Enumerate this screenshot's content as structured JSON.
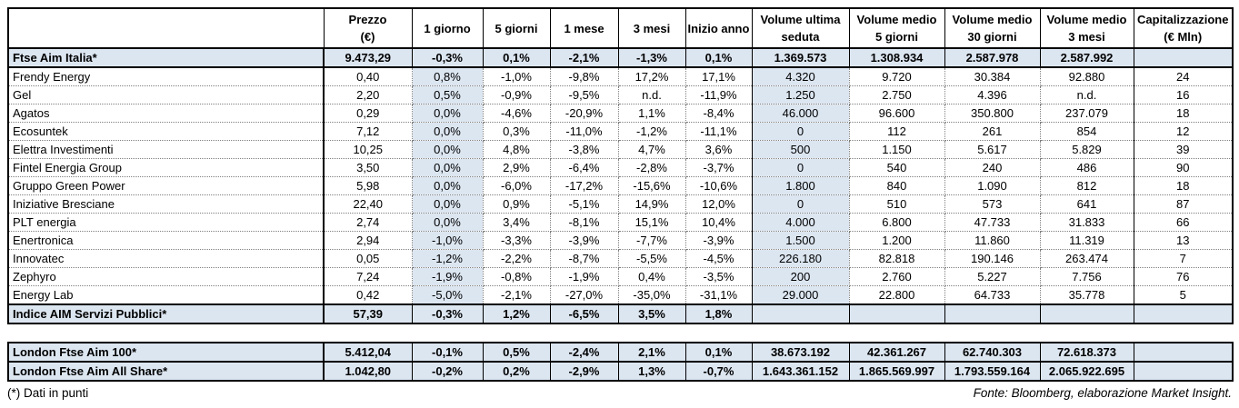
{
  "page": {
    "note": "(*) Dati in punti",
    "source": "Fonte: Bloomberg, elaborazione Market Insight."
  },
  "colors": {
    "highlight_blue": "#dce6f1",
    "border": "#000000",
    "text": "#000000",
    "background": "#ffffff"
  },
  "main_table": {
    "headers": [
      {
        "l1": "Prezzo",
        "l2": "(€)"
      },
      {
        "l1": "1 giorno",
        "l2": ""
      },
      {
        "l1": "5 giorni",
        "l2": ""
      },
      {
        "l1": "1 mese",
        "l2": ""
      },
      {
        "l1": "3 mesi",
        "l2": ""
      },
      {
        "l1": "Inizio anno",
        "l2": ""
      },
      {
        "l1": "Volume ultima",
        "l2": "seduta"
      },
      {
        "l1": "Volume medio",
        "l2": "5 giorni"
      },
      {
        "l1": "Volume medio",
        "l2": "30 giorni"
      },
      {
        "l1": "Volume medio",
        "l2": "3 mesi"
      },
      {
        "l1": "Capitalizzazione",
        "l2": "(€ Mln)"
      }
    ],
    "rows": [
      {
        "name": "Ftse Aim Italia*",
        "kind": "index",
        "cells": [
          "9.473,29",
          "-0,3%",
          "0,1%",
          "-2,1%",
          "-1,3%",
          "0,1%",
          "1.369.573",
          "1.308.934",
          "2.587.978",
          "2.587.992",
          ""
        ]
      },
      {
        "name": "Frendy Energy",
        "kind": "stock",
        "cells": [
          "0,40",
          "0,8%",
          "-1,0%",
          "-9,8%",
          "17,2%",
          "17,1%",
          "4.320",
          "9.720",
          "30.384",
          "92.880",
          "24"
        ]
      },
      {
        "name": "Gel",
        "kind": "stock",
        "cells": [
          "2,20",
          "0,5%",
          "-0,9%",
          "-9,5%",
          "n.d.",
          "-11,9%",
          "1.250",
          "2.750",
          "4.396",
          "n.d.",
          "16"
        ]
      },
      {
        "name": "Agatos",
        "kind": "stock",
        "cells": [
          "0,29",
          "0,0%",
          "-4,6%",
          "-20,9%",
          "1,1%",
          "-8,4%",
          "46.000",
          "96.600",
          "350.800",
          "237.079",
          "18"
        ]
      },
      {
        "name": "Ecosuntek",
        "kind": "stock",
        "cells": [
          "7,12",
          "0,0%",
          "0,3%",
          "-11,0%",
          "-1,2%",
          "-11,1%",
          "0",
          "112",
          "261",
          "854",
          "12"
        ]
      },
      {
        "name": "Elettra Investimenti",
        "kind": "stock",
        "cells": [
          "10,25",
          "0,0%",
          "4,8%",
          "-3,8%",
          "4,7%",
          "3,6%",
          "500",
          "1.150",
          "5.617",
          "5.829",
          "39"
        ]
      },
      {
        "name": "Fintel Energia Group",
        "kind": "stock",
        "cells": [
          "3,50",
          "0,0%",
          "2,9%",
          "-6,4%",
          "-2,8%",
          "-3,7%",
          "0",
          "540",
          "240",
          "486",
          "90"
        ]
      },
      {
        "name": "Gruppo Green Power",
        "kind": "stock",
        "cells": [
          "5,98",
          "0,0%",
          "-6,0%",
          "-17,2%",
          "-15,6%",
          "-10,6%",
          "1.800",
          "840",
          "1.090",
          "812",
          "18"
        ]
      },
      {
        "name": "Iniziative Bresciane",
        "kind": "stock",
        "cells": [
          "22,40",
          "0,0%",
          "0,9%",
          "-5,1%",
          "14,9%",
          "12,0%",
          "0",
          "510",
          "573",
          "641",
          "87"
        ]
      },
      {
        "name": "PLT energia",
        "kind": "stock",
        "cells": [
          "2,74",
          "0,0%",
          "3,4%",
          "-8,1%",
          "15,1%",
          "10,4%",
          "4.000",
          "6.800",
          "47.733",
          "31.833",
          "66"
        ]
      },
      {
        "name": "Enertronica",
        "kind": "stock",
        "cells": [
          "2,94",
          "-1,0%",
          "-3,3%",
          "-3,9%",
          "-7,7%",
          "-3,9%",
          "1.500",
          "1.200",
          "11.860",
          "11.319",
          "13"
        ]
      },
      {
        "name": "Innovatec",
        "kind": "stock",
        "cells": [
          "0,05",
          "-1,2%",
          "-2,2%",
          "-8,7%",
          "-5,5%",
          "-4,5%",
          "226.180",
          "82.818",
          "190.146",
          "263.474",
          "7"
        ]
      },
      {
        "name": "Zephyro",
        "kind": "stock",
        "cells": [
          "7,24",
          "-1,9%",
          "-0,8%",
          "-1,9%",
          "0,4%",
          "-3,5%",
          "200",
          "2.760",
          "5.227",
          "7.756",
          "76"
        ]
      },
      {
        "name": "Energy Lab",
        "kind": "stock",
        "cells": [
          "0,42",
          "-5,0%",
          "-2,1%",
          "-27,0%",
          "-35,0%",
          "-31,1%",
          "29.000",
          "22.800",
          "64.733",
          "35.778",
          "5"
        ]
      },
      {
        "name": "Indice AIM Servizi Pubblici*",
        "kind": "index",
        "cells": [
          "57,39",
          "-0,3%",
          "1,2%",
          "-6,5%",
          "3,5%",
          "1,8%",
          "",
          "",
          "",
          "",
          ""
        ]
      }
    ]
  },
  "london_table": {
    "rows": [
      {
        "name": "London Ftse Aim 100*",
        "kind": "index",
        "cells": [
          "5.412,04",
          "-0,1%",
          "0,5%",
          "-2,4%",
          "2,1%",
          "0,1%",
          "38.673.192",
          "42.361.267",
          "62.740.303",
          "72.618.373",
          ""
        ]
      },
      {
        "name": "London Ftse Aim All Share*",
        "kind": "index",
        "cells": [
          "1.042,80",
          "-0,2%",
          "0,2%",
          "-2,9%",
          "1,3%",
          "-0,7%",
          "1.643.361.152",
          "1.865.569.997",
          "1.793.559.164",
          "2.065.922.695",
          ""
        ]
      }
    ]
  }
}
